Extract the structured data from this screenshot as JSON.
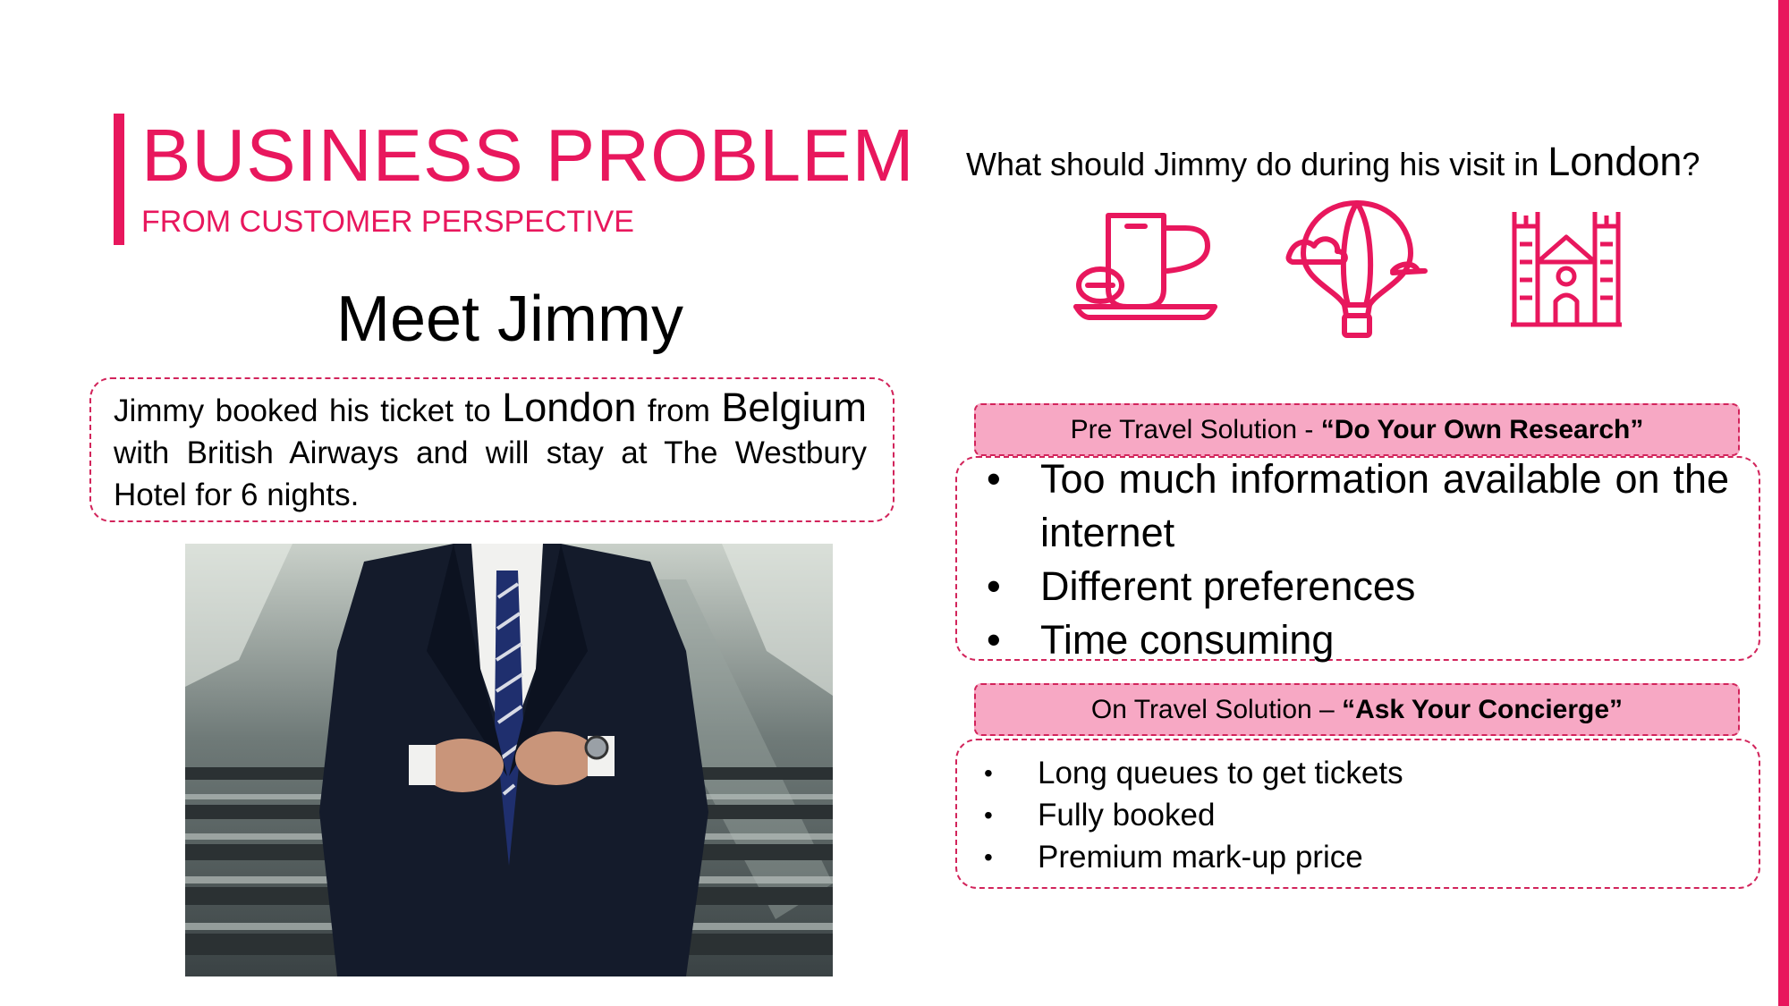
{
  "header": {
    "title": "BUSINESS PROBLEM",
    "subtitle": "FROM CUSTOMER PERSPECTIVE"
  },
  "left": {
    "heading": "Meet Jimmy",
    "intro": {
      "part1": "Jimmy booked his ticket to ",
      "city": "London",
      "part2": " from ",
      "country": "Belgium",
      "part3": " with British Airways and will stay at The Westbury Hotel for 6 nights."
    },
    "photo_icon": "businessman-photo"
  },
  "right": {
    "question": {
      "part1": "What should Jimmy do during his visit in ",
      "city": "London",
      "part2": "?"
    },
    "icons": [
      "tea-cup-icon",
      "hot-air-balloon-icon",
      "cathedral-icon"
    ],
    "pre_travel": {
      "label_prefix": "Pre Travel Solution - ",
      "label_quote": "“Do Your Own Research”",
      "bullet": "•",
      "items": [
        "Too much information available on the internet",
        "Different preferences",
        "Time consuming"
      ]
    },
    "on_travel": {
      "label_prefix": "On Travel Solution – ",
      "label_quote": "“Ask Your Concierge”",
      "bullet": "•",
      "items": [
        "Long queues to get tickets",
        "Fully booked",
        "Premium mark-up price"
      ]
    }
  },
  "colors": {
    "accent": "#e8175d",
    "label_fill": "#f7a8c4"
  }
}
